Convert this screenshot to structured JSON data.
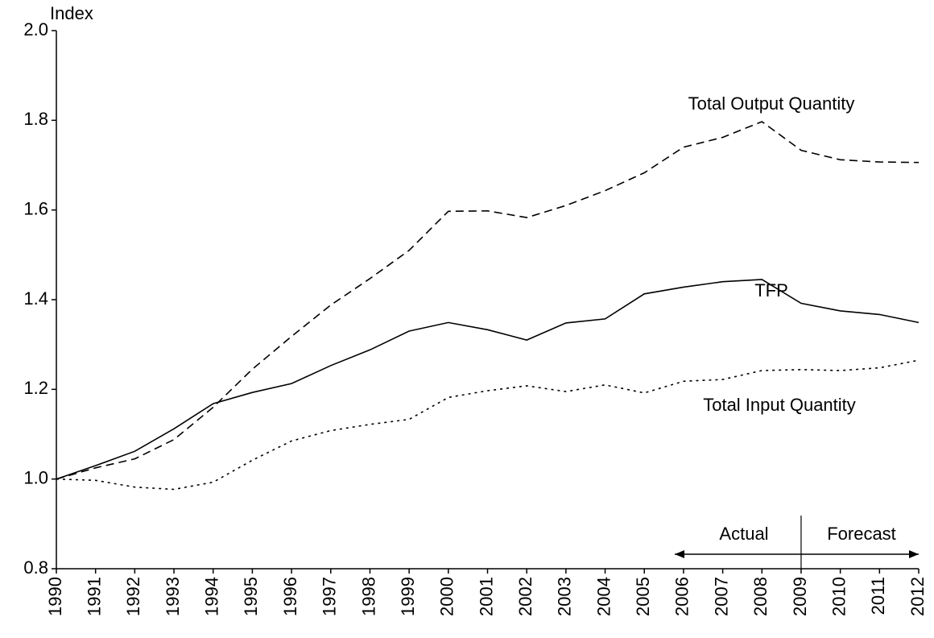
{
  "chart_data": {
    "type": "line",
    "y_label": "Index",
    "categories": [
      "1990",
      "1991",
      "1992",
      "1993",
      "1994",
      "1995",
      "1996",
      "1997",
      "1998",
      "1999",
      "2000",
      "2001",
      "2002",
      "2003",
      "2004",
      "2005",
      "2006",
      "2007",
      "2008",
      "2009",
      "2010",
      "2011",
      "2012"
    ],
    "series": [
      {
        "name": "Total Output Quantity",
        "color": "#000000",
        "dash": "dashed",
        "values": [
          1.0,
          1.025,
          1.045,
          1.088,
          1.16,
          1.245,
          1.318,
          1.388,
          1.447,
          1.51,
          1.597,
          1.598,
          1.583,
          1.61,
          1.643,
          1.683,
          1.74,
          1.762,
          1.797,
          1.733,
          1.712,
          1.707,
          1.706
        ]
      },
      {
        "name": "TFP",
        "color": "#000000",
        "dash": "solid",
        "values": [
          1.0,
          1.03,
          1.062,
          1.112,
          1.168,
          1.193,
          1.213,
          1.253,
          1.288,
          1.33,
          1.349,
          1.333,
          1.31,
          1.348,
          1.357,
          1.413,
          1.428,
          1.44,
          1.445,
          1.392,
          1.375,
          1.367,
          1.349
        ]
      },
      {
        "name": "Total Input Quantity",
        "color": "#000000",
        "dash": "dotted",
        "values": [
          1.0,
          0.997,
          0.982,
          0.977,
          0.993,
          1.042,
          1.085,
          1.108,
          1.122,
          1.133,
          1.182,
          1.197,
          1.208,
          1.195,
          1.21,
          1.192,
          1.218,
          1.222,
          1.242,
          1.244,
          1.242,
          1.248,
          1.265
        ]
      }
    ],
    "annotations": [
      "Actual",
      "Forecast"
    ],
    "ylim": [
      0.8,
      2.0
    ],
    "yticks": [
      0.8,
      1.0,
      1.2,
      1.4,
      1.6,
      1.8,
      2.0
    ],
    "grid": false
  }
}
